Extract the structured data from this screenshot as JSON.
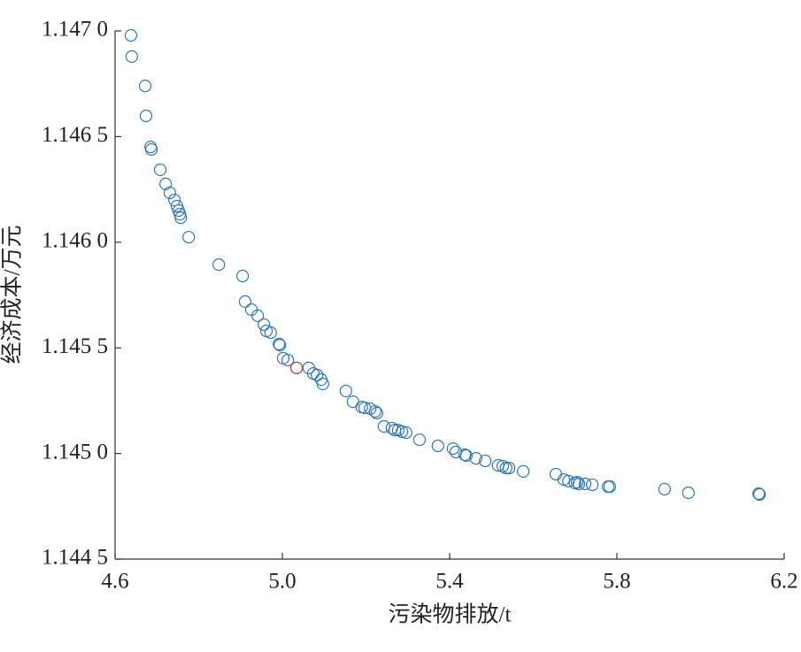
{
  "chart_data": {
    "type": "scatter",
    "xlabel": "污染物排放/t",
    "ylabel": "经济成本/万元",
    "xlim": [
      4.6,
      6.2
    ],
    "xticks": [
      4.6,
      {
        "value": 5,
        "label": "5.0"
      },
      5.4,
      5.8,
      6.2
    ],
    "ylim": [
      1.1445,
      1.147
    ],
    "yticks": [
      {
        "value": 1.1445,
        "label": "1.144 5"
      },
      {
        "value": 1.145,
        "label": "1.145 0"
      },
      {
        "value": 1.1455,
        "label": "1.145 5"
      },
      {
        "value": 1.146,
        "label": "1.146 0"
      },
      {
        "value": 1.1465,
        "label": "1.146 5"
      },
      {
        "value": 1.147,
        "label": "1.147 0"
      }
    ],
    "grid": false,
    "series": [
      {
        "color": "#2e78b4",
        "x": [
          4.638,
          4.64,
          4.672,
          4.674,
          4.685,
          4.687,
          4.708,
          4.721,
          4.731,
          4.742,
          4.748,
          4.752,
          4.755,
          4.757,
          4.776,
          4.848,
          4.905,
          4.911,
          4.926,
          4.941,
          4.956,
          4.962,
          4.972,
          4.992,
          4.994,
          5.002,
          5.013,
          5.063,
          5.074,
          5.083,
          5.093,
          5.097,
          5.152,
          5.169,
          5.19,
          5.197,
          5.21,
          5.222,
          5.226,
          5.243,
          5.262,
          5.269,
          5.277,
          5.286,
          5.296,
          5.328,
          5.372,
          5.408,
          5.415,
          5.436,
          5.44,
          5.463,
          5.485,
          5.516,
          5.527,
          5.535,
          5.542,
          5.576,
          5.654,
          5.673,
          5.684,
          5.7,
          5.705,
          5.709,
          5.724,
          5.741,
          5.779,
          5.783,
          5.914,
          5.971,
          6.139,
          6.141
        ],
        "values": [
          1.146979,
          1.146879,
          1.14674,
          1.146598,
          1.146451,
          1.146439,
          1.146343,
          1.146276,
          1.146234,
          1.1462,
          1.146171,
          1.14615,
          1.146133,
          1.146116,
          1.146024,
          1.145894,
          1.14584,
          1.145719,
          1.145681,
          1.145652,
          1.14561,
          1.14558,
          1.145572,
          1.145518,
          1.145513,
          1.145451,
          1.145442,
          1.145405,
          1.145379,
          1.145371,
          1.14535,
          1.145329,
          1.145296,
          1.145245,
          1.14522,
          1.145216,
          1.145212,
          1.145199,
          1.145191,
          1.145128,
          1.14512,
          1.145111,
          1.145111,
          1.145103,
          1.145099,
          1.145065,
          1.145036,
          1.145023,
          1.145007,
          1.144994,
          1.14499,
          1.144977,
          1.144965,
          1.144944,
          1.14494,
          1.144931,
          1.144931,
          1.144915,
          1.144902,
          1.144877,
          1.144869,
          1.14486,
          1.144864,
          1.144856,
          1.144856,
          1.144852,
          1.144843,
          1.144843,
          1.144831,
          1.144814,
          1.14481,
          1.144806
        ]
      },
      {
        "color": "#c8303a",
        "x": [
          5.034
        ],
        "values": [
          1.145405
        ]
      }
    ]
  }
}
